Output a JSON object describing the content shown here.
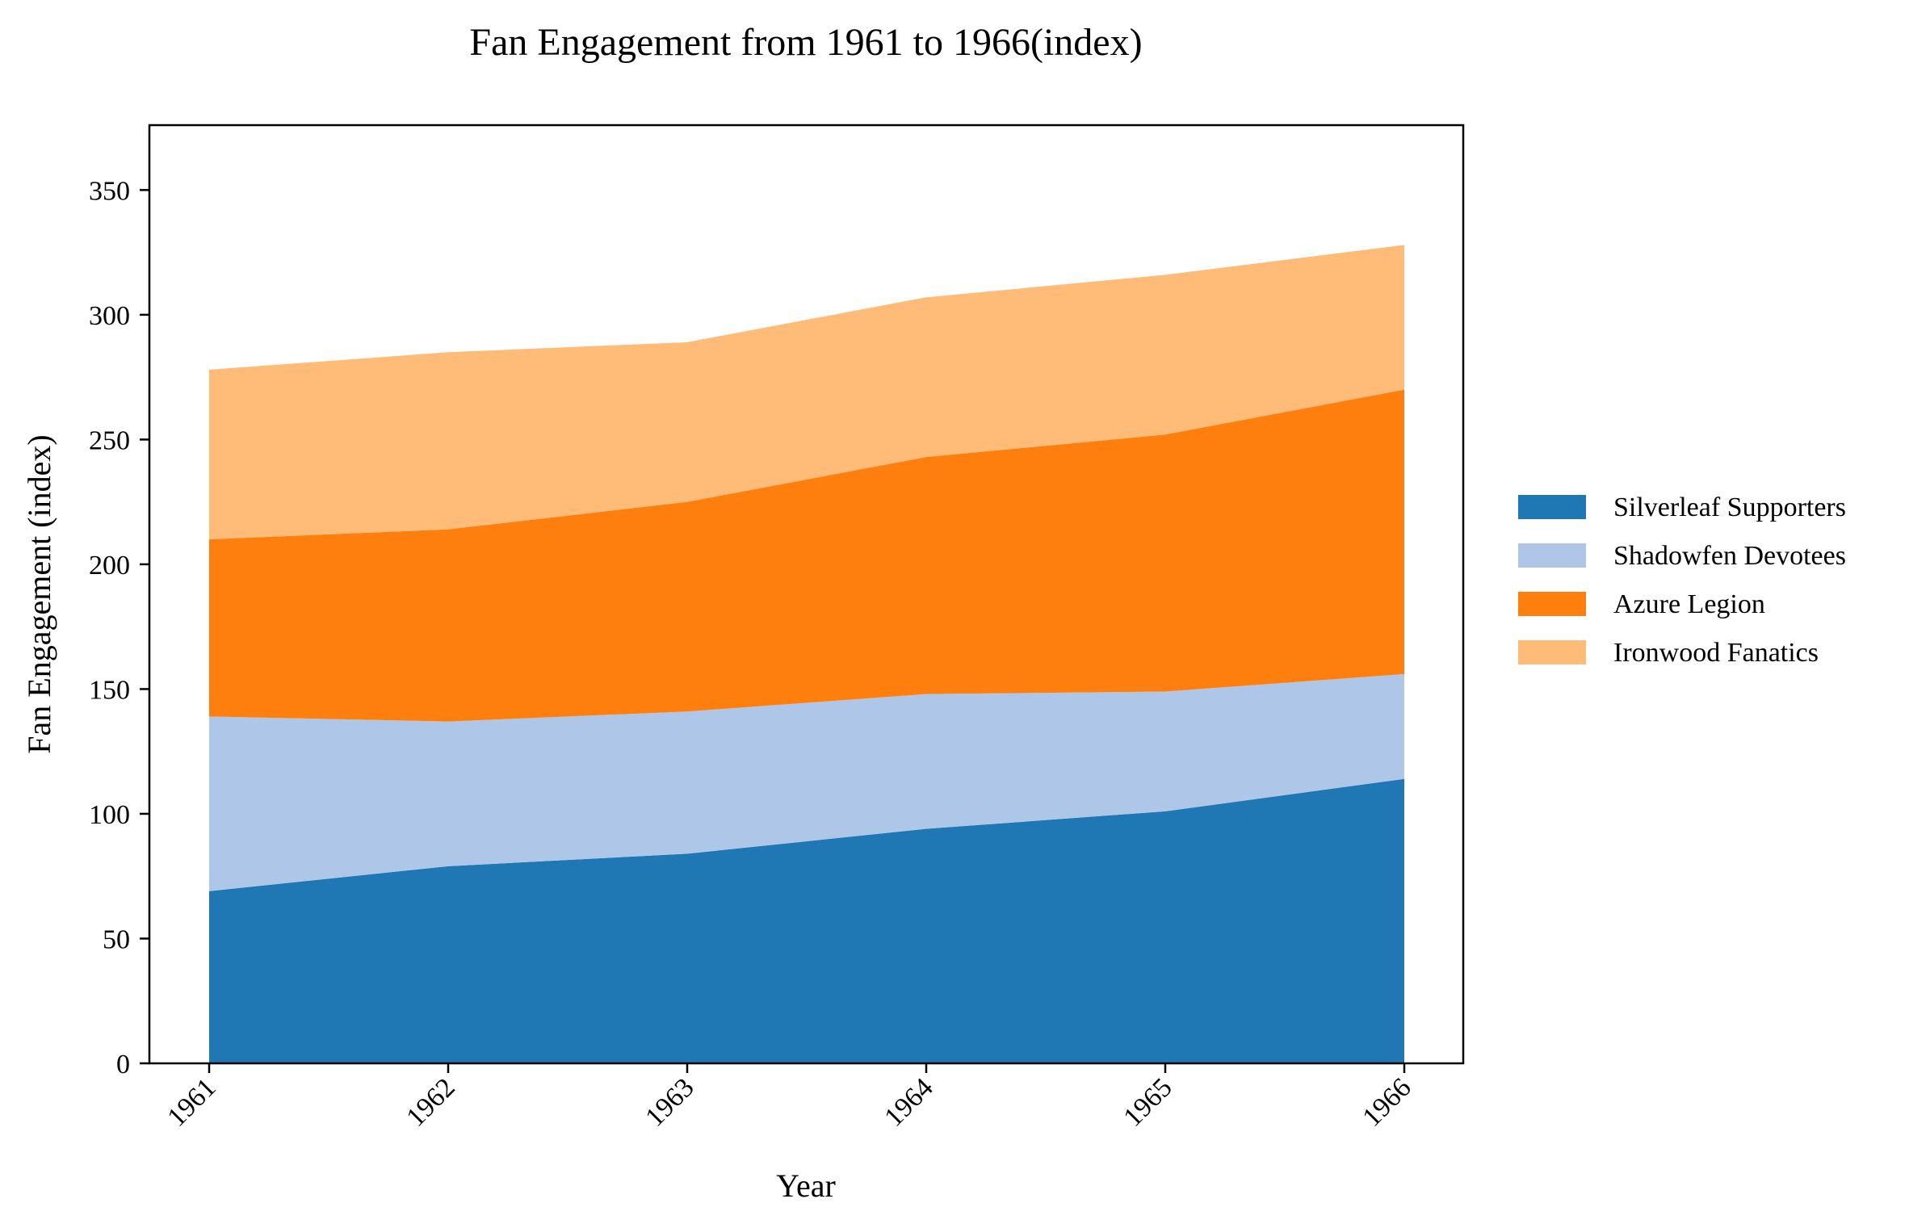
{
  "chart_data": {
    "type": "area",
    "stacked": true,
    "title": "Fan Engagement from 1961 to 1966(index)",
    "xlabel": "Year",
    "ylabel": "Fan Engagement (index)",
    "categories": [
      "1961",
      "1962",
      "1963",
      "1964",
      "1965",
      "1966"
    ],
    "ylim": [
      0,
      376
    ],
    "yticks": [
      0,
      50,
      100,
      150,
      200,
      250,
      300,
      350
    ],
    "grid": false,
    "legend_position": "center-right",
    "series": [
      {
        "name": "Silverleaf Supporters",
        "color": "#1f77b4",
        "values": [
          69,
          79,
          84,
          94,
          101,
          114
        ]
      },
      {
        "name": "Shadowfen Devotees",
        "color": "#aec7e8",
        "values": [
          70,
          58,
          57,
          54,
          48,
          42
        ]
      },
      {
        "name": "Azure Legion",
        "color": "#ff7f0e",
        "values": [
          71,
          77,
          84,
          95,
          103,
          114
        ]
      },
      {
        "name": "Ironwood Fanatics",
        "color": "#ffbb78",
        "values": [
          68,
          71,
          64,
          64,
          64,
          58
        ]
      }
    ]
  }
}
